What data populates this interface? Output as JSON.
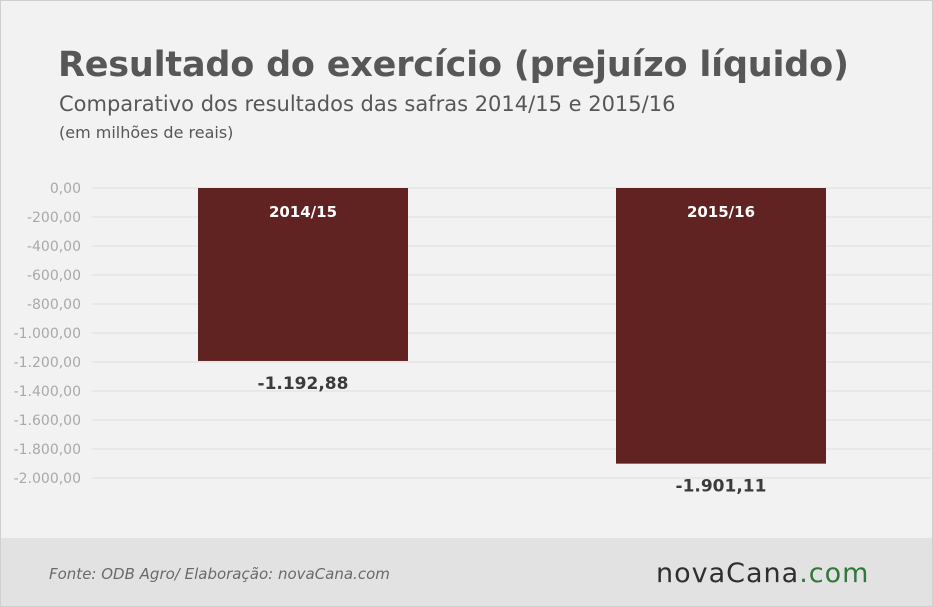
{
  "header": {
    "title": "Resultado do exercício (prejuízo líquido)",
    "subtitle": "Comparativo dos resultados das safras 2014/15 e 2015/16",
    "unit_note": "(em milhões de reais)"
  },
  "footer": {
    "source": "Fonte: ODB Agro/ Elaboração: novaCana.com",
    "brand_dark": "novaCana",
    "brand_green": ".com"
  },
  "colors": {
    "bar": "#612222",
    "background": "#f2f2f2",
    "grid": "#dedede",
    "tick_text": "#a9a9a9",
    "value_text": "#3b3b3b",
    "bar_label_text": "#ffffff",
    "brand_green": "#2f7a3a"
  },
  "chart_data": {
    "type": "bar",
    "title": "Resultado do exercício (prejuízo líquido)",
    "subtitle": "Comparativo dos resultados das safras 2014/15 e 2015/16",
    "categories": [
      "2014/15",
      "2015/16"
    ],
    "values": [
      -1192.88,
      -1901.11
    ],
    "value_labels": [
      "-1.192,88",
      "-1.901,11"
    ],
    "ylim": [
      -2000,
      0
    ],
    "yticks": [
      0,
      -200,
      -400,
      -600,
      -800,
      -1000,
      -1200,
      -1400,
      -1600,
      -1800,
      -2000
    ],
    "ytick_labels": [
      "0,00",
      "-200,00",
      "-400,00",
      "-600,00",
      "-800,00",
      "-1.000,00",
      "-1.200,00",
      "-1.400,00",
      "-1.600,00",
      "-1.800,00",
      "-2.000,00"
    ],
    "xlabel": "",
    "ylabel": "",
    "grid": true,
    "legend": "none"
  }
}
